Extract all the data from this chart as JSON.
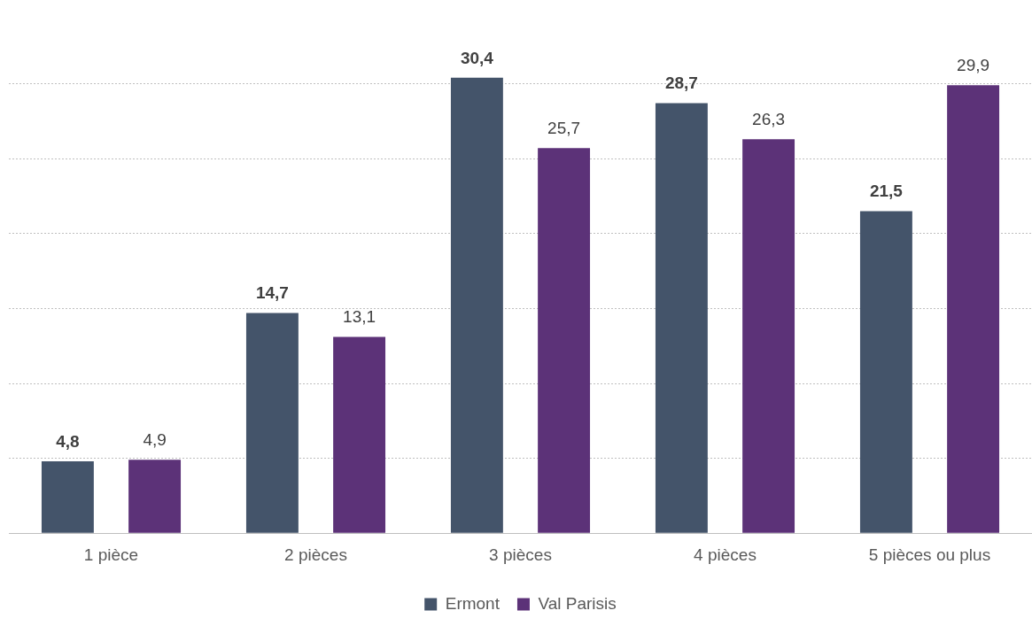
{
  "chart_data": {
    "type": "bar",
    "categories": [
      "1 pièce",
      "2 pièces",
      "3 pièces",
      "4 pièces",
      "5 pièces ou plus"
    ],
    "series": [
      {
        "name": "Ermont",
        "color": "#44546a",
        "values": [
          4.8,
          14.7,
          30.4,
          28.7,
          21.5
        ],
        "value_labels": [
          "4,8",
          "14,7",
          "30,4",
          "28,7",
          "21,5"
        ]
      },
      {
        "name": "Val Parisis",
        "color": "#5c3278",
        "values": [
          4.9,
          13.1,
          25.7,
          26.3,
          29.9
        ],
        "value_labels": [
          "4,9",
          "13,1",
          "25,7",
          "26,3",
          "29,9"
        ]
      }
    ],
    "yticks": [
      {
        "value": 0,
        "label": null
      },
      {
        "value": 5,
        "label": null
      },
      {
        "value": 10,
        "label": null
      },
      {
        "value": 15,
        "label": null
      },
      {
        "value": 20,
        "label": null
      },
      {
        "value": 25,
        "label": null
      },
      {
        "value": 30,
        "label": null
      }
    ],
    "tick_labels": "x",
    "grid": "y",
    "legend": "bottom"
  }
}
